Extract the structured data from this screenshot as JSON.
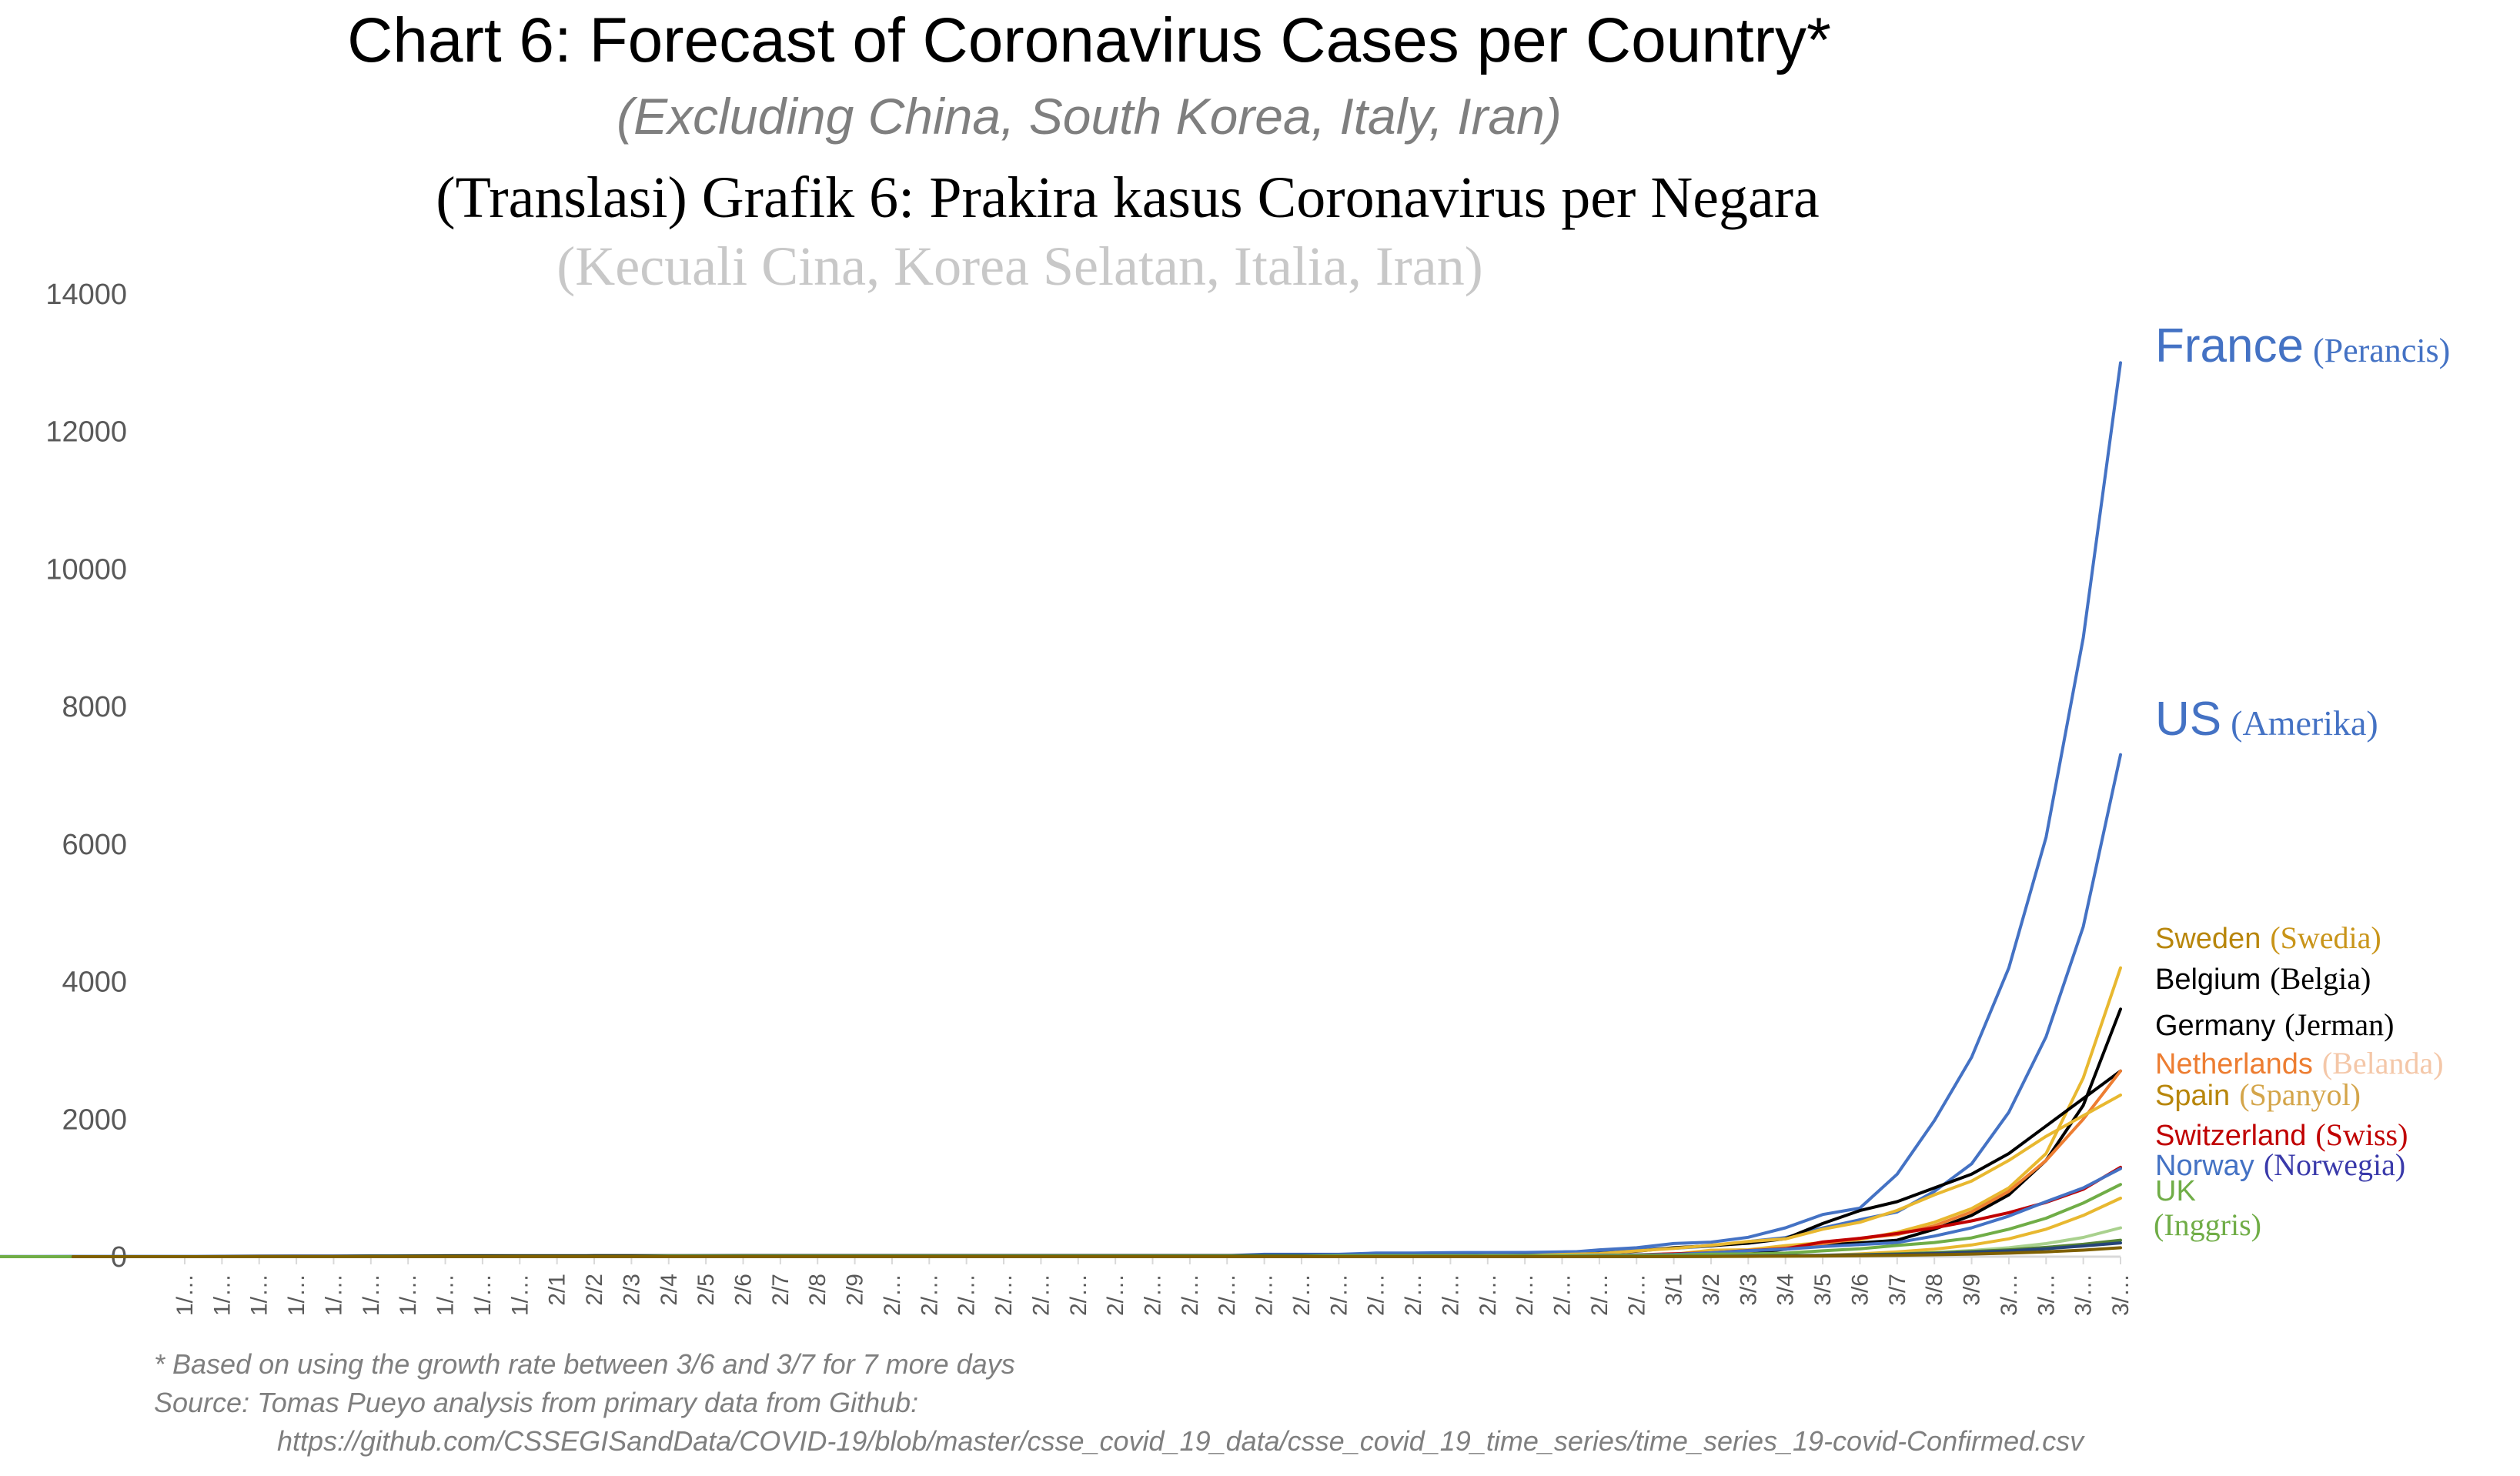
{
  "chart_data": {
    "type": "line",
    "title": "Chart 6: Forecast of Coronavirus Cases per Country*",
    "subtitle": "(Excluding China, South Korea, Italy, Iran)",
    "title_translation": "(Translasi) Grafik 6: Prakira kasus Coronavirus per Negara",
    "subtitle_translation": "(Kecuali Cina, Korea Selatan, Italia, Iran)",
    "xlabel": "",
    "ylabel": "",
    "ylim": [
      0,
      14000
    ],
    "yticks": [
      "0",
      "2000",
      "4000",
      "6000",
      "8000",
      "10000",
      "12000",
      "14000"
    ],
    "x_tick_labels": [
      "1/…",
      "1/…",
      "1/…",
      "1/…",
      "1/…",
      "1/…",
      "1/…",
      "1/…",
      "1/…",
      "1/…",
      "2/1",
      "2/2",
      "2/3",
      "2/4",
      "2/5",
      "2/6",
      "2/7",
      "2/8",
      "2/9",
      "2/…",
      "2/…",
      "2/…",
      "2/…",
      "2/…",
      "2/…",
      "2/…",
      "2/…",
      "2/…",
      "2/…",
      "2/…",
      "2/…",
      "2/…",
      "2/…",
      "2/…",
      "2/…",
      "2/…",
      "2/…",
      "2/…",
      "2/…",
      "2/…",
      "3/1",
      "3/2",
      "3/3",
      "3/4",
      "3/5",
      "3/6",
      "3/7",
      "3/8",
      "3/9",
      "3/…",
      "3/…",
      "3/…",
      "3/…"
    ],
    "grid": false,
    "legend": "right-end labels",
    "series": [
      {
        "name": "France",
        "name_translation": "(Perancis)",
        "color": "#4472c4",
        "values": [
          0,
          0,
          0,
          0,
          0,
          0,
          0,
          0,
          0,
          0,
          6,
          6,
          6,
          6,
          6,
          6,
          6,
          6,
          11,
          11,
          11,
          11,
          11,
          11,
          11,
          11,
          12,
          12,
          12,
          12,
          12,
          12,
          12,
          12,
          12,
          12,
          12,
          12,
          18,
          38,
          57,
          100,
          130,
          191,
          212,
          282,
          420,
          613,
          706,
          1200,
          1980,
          2900,
          4200,
          6100,
          9000,
          13000
        ]
      },
      {
        "name": "US",
        "name_translation": "(Amerika)",
        "color": "#4472c4",
        "values": [
          1,
          1,
          2,
          2,
          5,
          5,
          5,
          5,
          6,
          7,
          8,
          8,
          11,
          11,
          11,
          12,
          12,
          12,
          12,
          12,
          12,
          13,
          13,
          13,
          13,
          13,
          13,
          13,
          13,
          15,
          15,
          15,
          15,
          15,
          15,
          15,
          35,
          35,
          35,
          53,
          53,
          59,
          60,
          62,
          70,
          76,
          101,
          122,
          153,
          221,
          278,
          417,
          537,
          650,
          950,
          1350,
          2100,
          3200,
          4800,
          7300
        ]
      },
      {
        "name": "Sweden",
        "name_translation": "(Swedia)",
        "color": "#e8b830",
        "values": [
          0,
          0,
          0,
          0,
          0,
          0,
          0,
          0,
          0,
          0,
          1,
          1,
          1,
          1,
          1,
          1,
          1,
          1,
          1,
          1,
          1,
          1,
          1,
          1,
          1,
          1,
          1,
          1,
          1,
          1,
          1,
          1,
          1,
          1,
          1,
          1,
          1,
          1,
          1,
          7,
          7,
          12,
          14,
          15,
          21,
          35,
          94,
          101,
          161,
          203,
          248,
          355,
          500,
          700,
          1000,
          1500,
          2600,
          4200
        ]
      },
      {
        "name": "Belgium",
        "name_translation": "(Belgia)",
        "color": "#000000",
        "values": [
          0,
          0,
          0,
          0,
          0,
          0,
          0,
          0,
          0,
          0,
          1,
          1,
          1,
          1,
          1,
          1,
          1,
          1,
          1,
          1,
          1,
          1,
          1,
          1,
          1,
          1,
          1,
          1,
          1,
          1,
          1,
          1,
          1,
          1,
          1,
          1,
          1,
          1,
          1,
          1,
          1,
          1,
          2,
          8,
          13,
          23,
          50,
          109,
          169,
          200,
          239,
          400,
          600,
          900,
          1400,
          2200,
          3600
        ]
      },
      {
        "name": "Germany",
        "name_translation": "(Jerman)",
        "color": "#000000",
        "values": [
          0,
          0,
          0,
          0,
          0,
          0,
          1,
          4,
          4,
          5,
          8,
          10,
          12,
          12,
          12,
          12,
          13,
          13,
          14,
          14,
          16,
          16,
          16,
          16,
          16,
          16,
          16,
          16,
          16,
          16,
          16,
          16,
          16,
          16,
          16,
          16,
          16,
          16,
          16,
          16,
          16,
          18,
          26,
          48,
          79,
          130,
          159,
          196,
          262,
          482,
          670,
          800,
          1000,
          1200,
          1500,
          1900,
          2300,
          2700
        ]
      },
      {
        "name": "Netherlands",
        "name_translation": "(Belanda)",
        "color": "#ed7d31",
        "values": [
          0,
          0,
          0,
          0,
          0,
          0,
          0,
          0,
          0,
          0,
          0,
          0,
          0,
          0,
          0,
          0,
          0,
          0,
          0,
          0,
          0,
          0,
          0,
          0,
          0,
          0,
          0,
          0,
          0,
          0,
          0,
          0,
          0,
          0,
          0,
          0,
          0,
          0,
          1,
          1,
          2,
          6,
          10,
          18,
          24,
          38,
          82,
          128,
          188,
          265,
          321,
          450,
          650,
          950,
          1400,
          2000,
          2700
        ]
      },
      {
        "name": "Spain",
        "name_translation": "(Spanyol)",
        "color": "#e8b830",
        "values": [
          0,
          0,
          0,
          0,
          0,
          0,
          0,
          0,
          0,
          0,
          1,
          1,
          1,
          1,
          1,
          1,
          1,
          1,
          1,
          2,
          2,
          2,
          2,
          2,
          2,
          2,
          2,
          2,
          2,
          2,
          2,
          2,
          2,
          2,
          2,
          6,
          13,
          15,
          32,
          45,
          84,
          120,
          165,
          222,
          259,
          400,
          500,
          673,
          900,
          1100,
          1400,
          1750,
          2050,
          2350
        ]
      },
      {
        "name": "Switzerland",
        "name_translation": "(Swiss)",
        "color": "#c00000",
        "values": [
          0,
          0,
          0,
          0,
          0,
          0,
          0,
          0,
          0,
          0,
          0,
          0,
          0,
          0,
          0,
          0,
          0,
          0,
          0,
          0,
          0,
          0,
          0,
          0,
          0,
          0,
          0,
          0,
          0,
          0,
          0,
          0,
          0,
          0,
          0,
          0,
          0,
          0,
          1,
          1,
          8,
          8,
          18,
          27,
          42,
          56,
          90,
          114,
          214,
          268,
          337,
          420,
          520,
          640,
          790,
          980,
          1300
        ]
      },
      {
        "name": "Norway",
        "name_translation": "(Norwegia)",
        "color": "#4472c4",
        "values": [
          0,
          0,
          0,
          0,
          0,
          0,
          0,
          0,
          0,
          0,
          0,
          0,
          0,
          0,
          0,
          0,
          0,
          0,
          0,
          0,
          0,
          0,
          0,
          0,
          0,
          0,
          0,
          0,
          0,
          0,
          0,
          0,
          0,
          0,
          0,
          0,
          0,
          0,
          1,
          1,
          6,
          15,
          19,
          25,
          32,
          56,
          87,
          108,
          147,
          176,
          205,
          300,
          420,
          590,
          800,
          1000,
          1280
        ]
      },
      {
        "name": "UK",
        "name_translation": "(Inggris)",
        "color": "#70ad47",
        "values": [
          0,
          0,
          0,
          0,
          0,
          0,
          0,
          0,
          0,
          0,
          2,
          2,
          2,
          2,
          2,
          2,
          2,
          3,
          8,
          8,
          9,
          9,
          9,
          9,
          9,
          9,
          9,
          9,
          9,
          9,
          9,
          9,
          9,
          9,
          9,
          9,
          13,
          13,
          13,
          13,
          13,
          13,
          13,
          15,
          20,
          23,
          36,
          40,
          51,
          85,
          115,
          163,
          206,
          273,
          400,
          560,
          780,
          1050
        ]
      },
      {
        "name": "",
        "color": "#e8b830",
        "values": [
          0,
          0,
          0,
          0,
          0,
          0,
          0,
          0,
          0,
          0,
          0,
          0,
          0,
          0,
          0,
          0,
          0,
          0,
          0,
          0,
          0,
          0,
          0,
          0,
          0,
          0,
          0,
          0,
          0,
          0,
          0,
          0,
          0,
          0,
          0,
          0,
          0,
          0,
          0,
          0,
          1,
          1,
          5,
          6,
          12,
          16,
          20,
          40,
          70,
          110,
          170,
          260,
          400,
          600,
          850
        ]
      },
      {
        "name": "",
        "color": "#a9d18e",
        "values": [
          0,
          0,
          0,
          0,
          0,
          0,
          0,
          0,
          0,
          0,
          0,
          0,
          0,
          0,
          0,
          0,
          0,
          0,
          0,
          0,
          0,
          0,
          0,
          0,
          0,
          0,
          0,
          0,
          0,
          0,
          0,
          0,
          0,
          0,
          0,
          0,
          0,
          0,
          0,
          0,
          1,
          1,
          2,
          3,
          5,
          8,
          12,
          18,
          26,
          40,
          60,
          90,
          130,
          190,
          280,
          420
        ]
      },
      {
        "name": "",
        "color": "#548235",
        "values": [
          0,
          0,
          0,
          0,
          0,
          0,
          0,
          0,
          0,
          0,
          0,
          0,
          0,
          0,
          0,
          0,
          0,
          0,
          0,
          0,
          0,
          0,
          0,
          0,
          0,
          0,
          0,
          0,
          0,
          0,
          0,
          0,
          0,
          0,
          0,
          0,
          0,
          0,
          0,
          0,
          0,
          1,
          2,
          4,
          6,
          10,
          14,
          20,
          28,
          40,
          55,
          75,
          100,
          135,
          180,
          240
        ]
      },
      {
        "name": "",
        "color": "#264478",
        "values": [
          0,
          0,
          0,
          0,
          0,
          0,
          0,
          0,
          0,
          0,
          0,
          0,
          0,
          0,
          0,
          0,
          0,
          0,
          0,
          0,
          0,
          0,
          0,
          0,
          0,
          0,
          0,
          0,
          0,
          0,
          0,
          0,
          0,
          0,
          0,
          0,
          0,
          0,
          0,
          0,
          0,
          1,
          2,
          3,
          5,
          8,
          12,
          17,
          24,
          33,
          45,
          62,
          85,
          115,
          155,
          200
        ]
      },
      {
        "name": "",
        "color": "#7f6000",
        "values": [
          0,
          0,
          0,
          0,
          0,
          0,
          0,
          0,
          0,
          0,
          0,
          0,
          0,
          0,
          0,
          0,
          0,
          0,
          0,
          0,
          0,
          0,
          0,
          0,
          0,
          0,
          0,
          0,
          0,
          0,
          0,
          0,
          0,
          0,
          0,
          0,
          0,
          0,
          0,
          0,
          0,
          0,
          1,
          2,
          3,
          5,
          7,
          10,
          14,
          20,
          28,
          38,
          52,
          70,
          95,
          130
        ]
      }
    ],
    "end_labels": [
      {
        "name": "France",
        "translation": "(Perancis)",
        "color": "#4472c4",
        "tcolor": "#4472c4"
      },
      {
        "name": "US",
        "translation": "(Amerika)",
        "color": "#4472c4",
        "tcolor": "#4472c4"
      },
      {
        "name": "Sweden",
        "translation": "(Swedia)",
        "color": "#b8860b",
        "tcolor": "#c9951a"
      },
      {
        "name": "Belgium",
        "translation": "(Belgia)",
        "color": "#000000",
        "tcolor": "#000000"
      },
      {
        "name": "Germany",
        "translation": "(Jerman)",
        "color": "#000000",
        "tcolor": "#000000"
      },
      {
        "name": "Netherlands",
        "translation": "(Belanda)",
        "color": "#ed7d31",
        "tcolor": "#f4c7a8"
      },
      {
        "name": "Spain",
        "translation": "(Spanyol)",
        "color": "#b8860b",
        "tcolor": "#d4a54a"
      },
      {
        "name": "Switzerland",
        "translation": "(Swiss)",
        "color": "#c00000",
        "tcolor": "#c00000"
      },
      {
        "name": "Norway",
        "translation": "(Norwegia)",
        "color": "#4472c4",
        "tcolor": "#3a3aaa"
      },
      {
        "name": "UK",
        "translation": "(Inggris)",
        "color": "#70ad47",
        "tcolor": "#70ad47"
      }
    ],
    "footnote": "* Based on using the growth rate between 3/6 and 3/7 for 7 more days",
    "source": "Source: Tomas Pueyo analysis from primary data from Github:",
    "source_url": "https://github.com/CSSEGISandData/COVID-19/blob/master/csse_covid_19_data/csse_covid_19_time_series/time_series_19-covid-Confirmed.csv"
  }
}
